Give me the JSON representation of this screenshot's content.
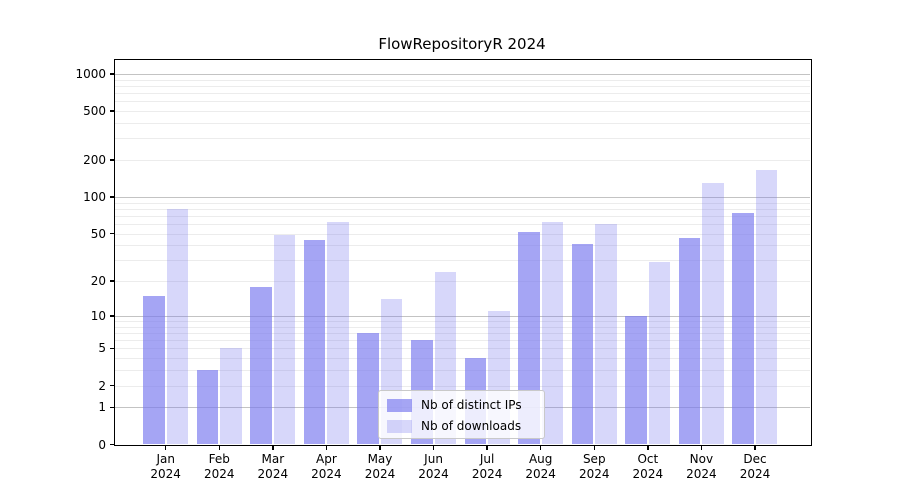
{
  "chart_data": {
    "type": "bar",
    "title": "FlowRepositoryR 2024",
    "categories": [
      "Jan",
      "Feb",
      "Mar",
      "Apr",
      "May",
      "Jun",
      "Jul",
      "Aug",
      "Sep",
      "Oct",
      "Nov",
      "Dec"
    ],
    "year": "2024",
    "series": [
      {
        "name": "Nb of distinct IPs",
        "values": [
          15,
          3,
          18,
          44,
          7,
          6,
          4,
          52,
          41,
          10,
          46,
          74
        ],
        "color": "rgba(118,118,238,0.66)"
      },
      {
        "name": "Nb of downloads",
        "values": [
          80,
          5,
          49,
          62,
          14,
          24,
          11,
          62,
          60,
          29,
          130,
          165
        ],
        "color": "rgba(118,118,238,0.29)"
      }
    ],
    "y_scale": "log1p",
    "ylim": [
      0,
      1300
    ],
    "y_ticks": [
      0,
      1,
      2,
      5,
      10,
      20,
      50,
      100,
      200,
      500,
      1000
    ],
    "y_tick_labels": [
      "0",
      "1",
      "2",
      "5",
      "10",
      "20",
      "50",
      "100",
      "200",
      "500",
      "1000"
    ],
    "grid": {
      "on": true,
      "major_values": [
        1,
        10,
        100,
        1000
      ]
    },
    "legend": {
      "position": "bottom-center",
      "entries": [
        "Nb of distinct IPs",
        "Nb of downloads"
      ]
    },
    "colors": {
      "bar_base": "#7676ee",
      "grid_major": "#c3c3c3",
      "grid_minor": "#ececec",
      "axis": "#000000",
      "legend_border": "#c9c9c9"
    }
  }
}
